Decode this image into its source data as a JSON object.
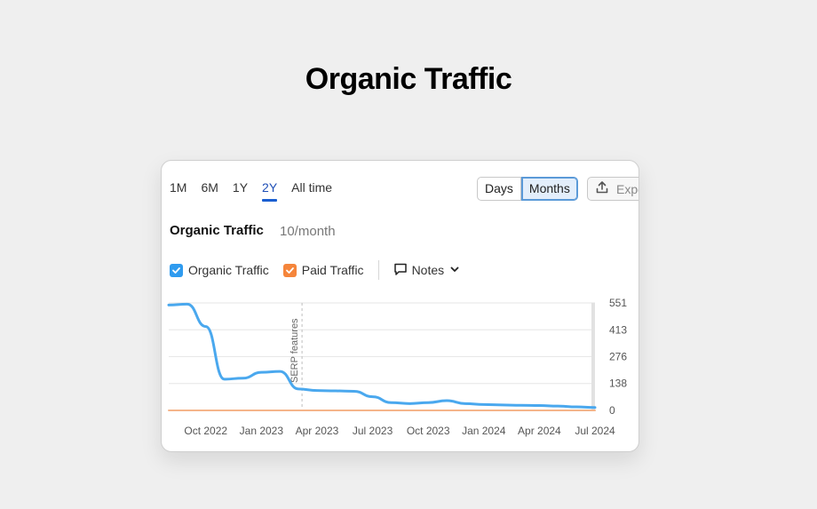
{
  "page": {
    "title": "Organic Traffic"
  },
  "card": {
    "ranges": [
      "1M",
      "6M",
      "1Y",
      "2Y",
      "All time"
    ],
    "active_range": "2Y",
    "granularity": {
      "days_label": "Days",
      "months_label": "Months",
      "selected": "Months"
    },
    "export_label": "Export",
    "chart_title": "Organic Traffic",
    "chart_subtitle": "10/month",
    "legend": {
      "organic_label": "Organic Traffic",
      "organic_color": "#2f9bef",
      "paid_label": "Paid Traffic",
      "paid_color": "#f5853b",
      "notes_label": "Notes"
    },
    "icons": {
      "export": "export-upload-icon",
      "notes": "comment-icon",
      "chevron": "chevron-down-icon",
      "check": "check-icon"
    }
  },
  "chart_data": {
    "type": "line",
    "x": [
      "2022-08",
      "2022-09",
      "2022-10",
      "2022-11",
      "2022-12",
      "2023-01",
      "2023-02",
      "2023-03",
      "2023-04",
      "2023-05",
      "2023-06",
      "2023-07",
      "2023-08",
      "2023-09",
      "2023-10",
      "2023-11",
      "2023-12",
      "2024-01",
      "2024-02",
      "2024-03",
      "2024-04",
      "2024-05",
      "2024-06",
      "2024-07"
    ],
    "x_tick_labels": [
      "Oct 2022",
      "Jan 2023",
      "Apr 2023",
      "Jul 2023",
      "Oct 2023",
      "Jan 2024",
      "Apr 2024",
      "Jul 2024"
    ],
    "y_ticks": [
      551,
      413,
      276,
      138,
      0
    ],
    "ylim": [
      0,
      551
    ],
    "grid": true,
    "series": [
      {
        "name": "Organic Traffic",
        "color": "#4aa8ee",
        "values": [
          540,
          545,
          430,
          160,
          165,
          195,
          200,
          110,
          102,
          100,
          98,
          70,
          40,
          35,
          40,
          50,
          35,
          30,
          28,
          26,
          25,
          22,
          18,
          15
        ]
      },
      {
        "name": "Paid Traffic",
        "color": "#f5b58a",
        "values": [
          0,
          0,
          0,
          0,
          0,
          0,
          0,
          0,
          0,
          0,
          0,
          0,
          0,
          0,
          0,
          0,
          0,
          0,
          0,
          0,
          0,
          0,
          0,
          0
        ]
      }
    ],
    "annotations": [
      {
        "x": "2023-03",
        "label": "SERP features"
      }
    ]
  }
}
